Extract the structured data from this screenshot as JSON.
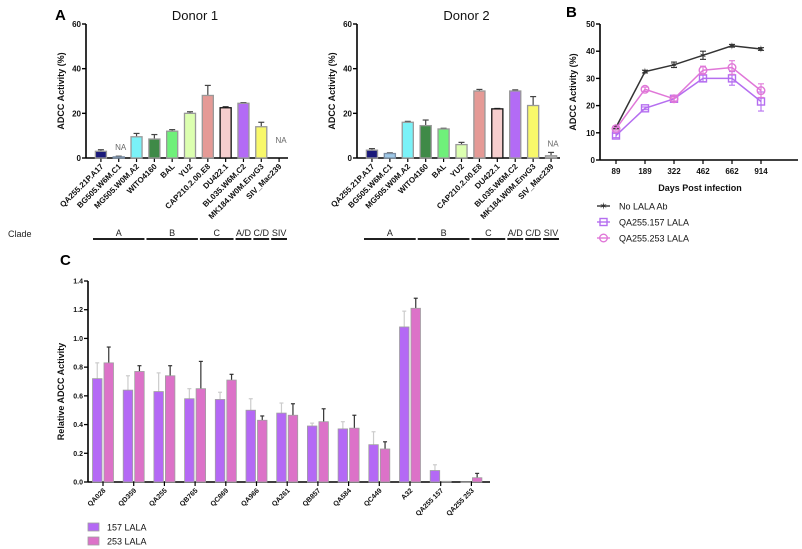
{
  "chart_data": [
    {
      "id": "A1",
      "panel": "A",
      "type": "bar",
      "title": "Donor 1",
      "ylabel": "ADCC Activity (%)",
      "xlabel": "",
      "ylim": [
        0,
        60
      ],
      "yticks": [
        0,
        20,
        40,
        60
      ],
      "categories": [
        "QA255.21P.A17",
        "BG505.W6M.C1",
        "MG505.W0M.A2",
        "WITO4160",
        "BAL",
        "YU2",
        "CAP210.2.00.E8",
        "DU422.1",
        "BL035.W6M.C2",
        "MK184.W0M.EnvG3",
        "SIV_Mac239"
      ],
      "values": [
        3,
        0.5,
        9.5,
        8.5,
        12,
        20,
        28,
        22.5,
        24.5,
        14,
        null
      ],
      "errors": [
        0.7,
        0.3,
        1.5,
        2,
        0.7,
        0.7,
        4.5,
        0.5,
        0.3,
        2,
        null
      ],
      "annotations": [
        {
          "category": "BG505.W6M.C1",
          "text": "NA"
        },
        {
          "category": "SIV_Mac239",
          "text": "NA"
        }
      ],
      "colors": [
        "#1b1a7a",
        "#9ec9e8",
        "#7af2f8",
        "#3f8a47",
        "#6ff07a",
        "#dcffb0",
        "#e59a96",
        "#f6cece",
        "#b36bf5",
        "#f8f86a",
        "#bbbbbb"
      ],
      "clades": [
        {
          "label": "A",
          "from": 0,
          "to": 2
        },
        {
          "label": "B",
          "from": 3,
          "to": 5
        },
        {
          "label": "C",
          "from": 6,
          "to": 7
        },
        {
          "label": "A/D",
          "from": 8,
          "to": 8
        },
        {
          "label": "C/D",
          "from": 9,
          "to": 9
        },
        {
          "label": "SIV",
          "from": 10,
          "to": 10
        }
      ],
      "clade_label": "Clade"
    },
    {
      "id": "A2",
      "panel": "",
      "type": "bar",
      "title": "Donor 2",
      "ylabel": "ADCC Activity (%)",
      "xlabel": "",
      "ylim": [
        0,
        60
      ],
      "yticks": [
        0,
        20,
        40,
        60
      ],
      "categories": [
        "QA255.21P.A17",
        "BG505.W6M.C1",
        "MG505.W0M.A2",
        "WITO4160",
        "BAL",
        "YU2",
        "CAP210.2.00.E8",
        "DU422.1",
        "BL035.W6M.C2",
        "MK184.W0M.EnvG3",
        "SIV_Mac239"
      ],
      "values": [
        3.5,
        2,
        16,
        14.5,
        13,
        6,
        30,
        22,
        30,
        23.5,
        1
      ],
      "errors": [
        0.7,
        0.3,
        0.4,
        2.5,
        0.3,
        1,
        0.7,
        0.2,
        0.5,
        4,
        1.5
      ],
      "annotations": [
        {
          "category": "SIV_Mac239",
          "text": "NA"
        }
      ],
      "colors": [
        "#1b1a7a",
        "#9ec9e8",
        "#7af2f8",
        "#3f8a47",
        "#6ff07a",
        "#dcffb0",
        "#e59a96",
        "#f6cece",
        "#b36bf5",
        "#f8f86a",
        "#bbbbbb"
      ],
      "clades": [
        {
          "label": "A",
          "from": 0,
          "to": 2
        },
        {
          "label": "B",
          "from": 3,
          "to": 5
        },
        {
          "label": "C",
          "from": 6,
          "to": 7
        },
        {
          "label": "A/D",
          "from": 8,
          "to": 8
        },
        {
          "label": "C/D",
          "from": 9,
          "to": 9
        },
        {
          "label": "SIV",
          "from": 10,
          "to": 10
        }
      ]
    },
    {
      "id": "B",
      "panel": "B",
      "type": "line",
      "title": "",
      "ylabel": "ADCC Activity (%)",
      "xlabel": "Days Post infection",
      "ylim": [
        0,
        50
      ],
      "yticks": [
        0,
        10,
        20,
        30,
        40,
        50
      ],
      "x": [
        "89",
        "189",
        "322",
        "462",
        "662",
        "914"
      ],
      "series": [
        {
          "name": "No LALA Ab",
          "color": "#333333",
          "marker": "star",
          "values": [
            12,
            32.5,
            35,
            38.5,
            42,
            40.8
          ],
          "errors": [
            0.5,
            0.5,
            1,
            1.5,
            0.5,
            0.5
          ]
        },
        {
          "name": "QA255.157 LALA",
          "color": "#b56ef0",
          "marker": "square",
          "values": [
            9,
            19,
            22.5,
            30,
            30,
            21.5
          ],
          "errors": [
            0.8,
            0.5,
            1,
            1.2,
            2.5,
            3.5
          ]
        },
        {
          "name": "QA255.253 LALA",
          "color": "#e077d8",
          "marker": "diamond",
          "values": [
            11.5,
            26,
            22.5,
            33,
            34,
            25.5
          ],
          "errors": [
            0.5,
            0.8,
            0.8,
            1.5,
            2.5,
            2.5
          ]
        }
      ],
      "legend_position": "bottom"
    },
    {
      "id": "C",
      "panel": "C",
      "type": "bar",
      "title": "",
      "ylabel": "Relative ADCC Activity",
      "xlabel": "",
      "ylim": [
        0,
        1.4
      ],
      "yticks": [
        "0.0",
        "0.2",
        "0.4",
        "0.6",
        "0.8",
        "1.0",
        "1.2",
        "1.4"
      ],
      "categories": [
        "QA028",
        "QD359",
        "QA255",
        "QB765",
        "QC869",
        "QA966",
        "QA261",
        "QB857",
        "QA584",
        "QC449",
        "A32",
        "QA255 157",
        "QA255 253"
      ],
      "series": [
        {
          "name": "157 LALA",
          "color": "#b469f5",
          "values": [
            0.72,
            0.64,
            0.63,
            0.58,
            0.575,
            0.5,
            0.48,
            0.39,
            0.37,
            0.26,
            1.08,
            0.08,
            0.0
          ],
          "errors": [
            0.11,
            0.1,
            0.13,
            0.07,
            0.05,
            0.08,
            0.07,
            0.02,
            0.05,
            0.09,
            0.11,
            0.04,
            0.0
          ]
        },
        {
          "name": "253 LALA",
          "color": "#dc72c8",
          "values": [
            0.83,
            0.77,
            0.74,
            0.65,
            0.71,
            0.43,
            0.465,
            0.42,
            0.375,
            0.23,
            1.21,
            0.005,
            0.03
          ],
          "errors": [
            0.11,
            0.04,
            0.07,
            0.19,
            0.04,
            0.03,
            0.08,
            0.09,
            0.09,
            0.05,
            0.07,
            0.0,
            0.03
          ]
        }
      ],
      "legend_position": "bottom-left"
    }
  ]
}
